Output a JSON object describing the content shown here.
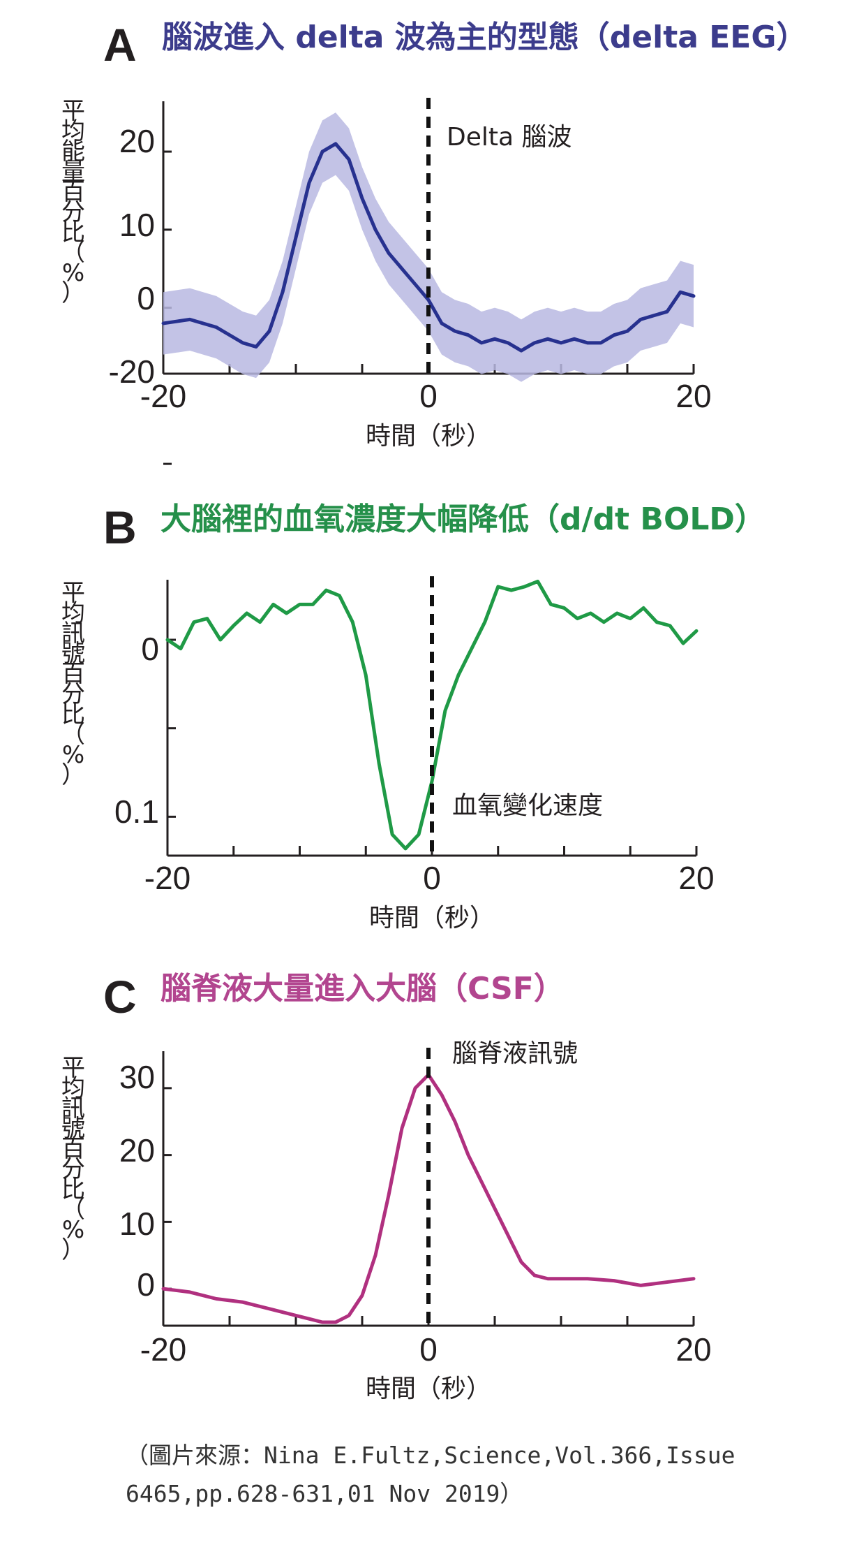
{
  "panels": [
    {
      "letter": "A",
      "title": "腦波進入 delta 波為主的型態（delta EEG）",
      "title_color": "#3c3c8c",
      "ylabel": "平均能量百分比（%）",
      "xlabel": "時間（秒）",
      "annotation": "Delta 腦波",
      "xtick_labels": [
        "-20",
        "0",
        "20"
      ],
      "ytick_labels": [
        "20",
        "10",
        "0",
        "-20"
      ],
      "line_color": "#27318f",
      "band_color": "#b8b8e2"
    },
    {
      "letter": "B",
      "title": "大腦裡的血氧濃度大幅降低（d/dt BOLD）",
      "title_color": "#25904a",
      "ylabel": "平均訊號百分比（%）",
      "xlabel": "時間（秒）",
      "annotation": "血氧變化速度",
      "xtick_labels": [
        "-20",
        "0",
        "20"
      ],
      "ytick_labels": [
        "0",
        "0.1"
      ],
      "line_color": "#1f9a46"
    },
    {
      "letter": "C",
      "title": "腦脊液大量進入大腦（CSF）",
      "title_color": "#b2458f",
      "ylabel": "平均訊號百分比（%）",
      "xlabel": "時間（秒）",
      "annotation": "腦脊液訊號",
      "xtick_labels": [
        "-20",
        "0",
        "20"
      ],
      "ytick_labels": [
        "30",
        "20",
        "10",
        "0"
      ],
      "line_color": "#b0307f"
    }
  ],
  "caption": {
    "line1": "（圖片來源：Nina E.Fultz,Science,Vol.366,Issue",
    "line2": "6465,pp.628-631,01 Nov 2019）"
  },
  "chart_data": [
    {
      "type": "line",
      "title": "腦波進入 delta 波為主的型態（delta EEG）",
      "xlabel": "時間（秒）",
      "ylabel": "平均能量百分比（%）",
      "xlim": [
        -20,
        20
      ],
      "ylim": [
        -8,
        26
      ],
      "vline_x": 0,
      "series": [
        {
          "x": [
            -20,
            -18,
            -16,
            -14,
            -13,
            -12,
            -11,
            -10,
            -9,
            -8,
            -7,
            -6,
            -5,
            -4,
            -3,
            -2,
            -1,
            0,
            1,
            2,
            3,
            4,
            5,
            6,
            7,
            8,
            9,
            10,
            11,
            12,
            13,
            14,
            15,
            16,
            17,
            18,
            19,
            20
          ],
          "y": [
            -2,
            -1.5,
            -2.5,
            -4.5,
            -5,
            -3,
            2,
            9,
            16,
            20,
            21,
            19,
            14,
            10,
            7,
            5,
            3,
            1,
            -2,
            -3,
            -3.5,
            -4.5,
            -4,
            -4.5,
            -5.5,
            -4.5,
            -4,
            -4.5,
            -4,
            -4.5,
            -4.5,
            -3.5,
            -3,
            -1.5,
            -1,
            -0.5,
            2,
            1.5
          ],
          "band": 4
        }
      ]
    },
    {
      "type": "line",
      "title": "大腦裡的血氧濃度大幅降低（d/dt BOLD）",
      "xlabel": "時間（秒）",
      "ylabel": "平均訊號百分比（%）",
      "xlim": [
        -20,
        20
      ],
      "ylim": [
        -0.03,
        0.12
      ],
      "y_inverted": true,
      "vline_x": 0,
      "series": [
        {
          "x": [
            -20,
            -19,
            -18,
            -17,
            -16,
            -15,
            -14,
            -13,
            -12,
            -11,
            -10,
            -9,
            -8,
            -7,
            -6,
            -5,
            -4,
            -3,
            -2,
            -1,
            0,
            1,
            2,
            3,
            4,
            5,
            6,
            7,
            8,
            9,
            10,
            11,
            12,
            13,
            14,
            15,
            16,
            17,
            18,
            19,
            20
          ],
          "y": [
            0,
            0.005,
            -0.01,
            -0.012,
            0,
            -0.008,
            -0.015,
            -0.01,
            -0.02,
            -0.015,
            -0.02,
            -0.02,
            -0.028,
            -0.025,
            -0.01,
            0.02,
            0.07,
            0.11,
            0.118,
            0.11,
            0.08,
            0.04,
            0.02,
            0.005,
            -0.01,
            -0.03,
            -0.028,
            -0.03,
            -0.033,
            -0.02,
            -0.018,
            -0.012,
            -0.015,
            -0.01,
            -0.015,
            -0.012,
            -0.018,
            -0.01,
            -0.008,
            0.002,
            -0.005
          ]
        }
      ]
    },
    {
      "type": "line",
      "title": "腦脊液大量進入大腦（CSF）",
      "xlabel": "時間（秒）",
      "ylabel": "平均訊號百分比（%）",
      "xlim": [
        -20,
        20
      ],
      "ylim": [
        -5,
        35
      ],
      "vline_x": 0,
      "series": [
        {
          "x": [
            -20,
            -18,
            -16,
            -14,
            -12,
            -10,
            -9,
            -8,
            -7,
            -6,
            -5,
            -4,
            -3,
            -2,
            -1,
            0,
            1,
            2,
            3,
            4,
            5,
            6,
            7,
            8,
            9,
            10,
            12,
            14,
            16,
            18,
            20
          ],
          "y": [
            0,
            -0.5,
            -1.5,
            -2,
            -3,
            -4,
            -4.5,
            -5,
            -5,
            -4,
            -1,
            5,
            14,
            24,
            30,
            32,
            29,
            25,
            20,
            16,
            12,
            8,
            4,
            2,
            1.5,
            1.5,
            1.5,
            1.2,
            0.5,
            1,
            1.5
          ]
        }
      ]
    }
  ]
}
